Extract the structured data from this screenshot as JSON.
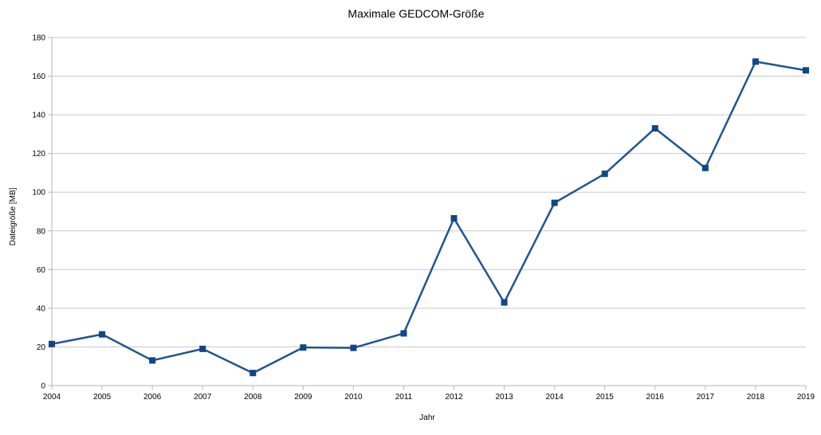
{
  "chart_data": {
    "type": "line",
    "title": "Maximale GEDCOM-Größe",
    "xlabel": "Jahr",
    "ylabel": "Dateigröße [MB]",
    "x": [
      "2004",
      "2005",
      "2006",
      "2007",
      "2008",
      "2009",
      "2010",
      "2011",
      "2012",
      "2013",
      "2014",
      "2015",
      "2016",
      "2017",
      "2018",
      "2019"
    ],
    "series": [
      {
        "values": [
          21.5,
          26.5,
          13,
          19,
          6.5,
          19.7,
          19.5,
          27,
          86.5,
          43,
          94.5,
          109.5,
          133,
          112.5,
          167.5,
          163
        ]
      }
    ],
    "ylim": [
      0,
      180
    ],
    "yticks": [
      0,
      20,
      40,
      60,
      80,
      100,
      120,
      140,
      160,
      180
    ],
    "grid": true,
    "legend": "none",
    "colors": {
      "line": "#1f5591",
      "marker": "#0d4785",
      "grid": "#c8c8c8",
      "axis": "#b4b4b4"
    }
  }
}
